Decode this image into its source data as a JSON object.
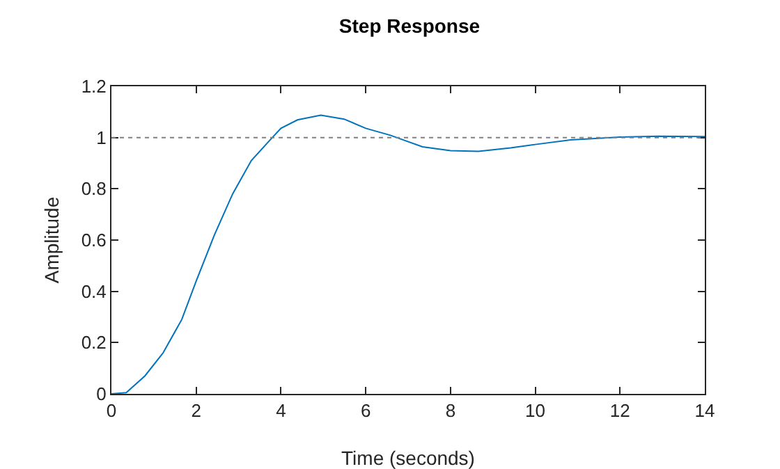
{
  "chart_data": {
    "type": "line",
    "title": "Step Response",
    "xlabel": "Time (seconds)",
    "ylabel": "Amplitude",
    "x": [
      0,
      0.35,
      0.79,
      1.22,
      1.66,
      2.0,
      2.43,
      2.86,
      3.3,
      3.74,
      4.0,
      4.39,
      4.94,
      5.49,
      6.0,
      6.58,
      6.9,
      7.34,
      8.0,
      8.66,
      9.42,
      10.0,
      10.84,
      12.0,
      12.9,
      14.0
    ],
    "series": [
      {
        "color": "#0072bd",
        "values": [
          0,
          0.005,
          0.07,
          0.16,
          0.29,
          0.44,
          0.62,
          0.78,
          0.91,
          0.99,
          1.036,
          1.069,
          1.087,
          1.072,
          1.036,
          1.009,
          0.99,
          0.964,
          0.949,
          0.946,
          0.96,
          0.973,
          0.991,
          1.002,
          1.005,
          1.004
        ]
      }
    ],
    "xlim": [
      0,
      14
    ],
    "xticks": [
      0,
      2,
      4,
      6,
      8,
      10,
      12,
      14
    ],
    "ylim": [
      0,
      1.2
    ],
    "yticks": [
      0,
      0.2,
      0.4,
      0.6,
      0.8,
      1,
      1.2
    ],
    "ref_lines": [
      {
        "axis": "y",
        "value": 1,
        "color": "#808080",
        "line_style": "dotted"
      }
    ],
    "grid": false,
    "marker": "none",
    "line_style": "solid"
  }
}
